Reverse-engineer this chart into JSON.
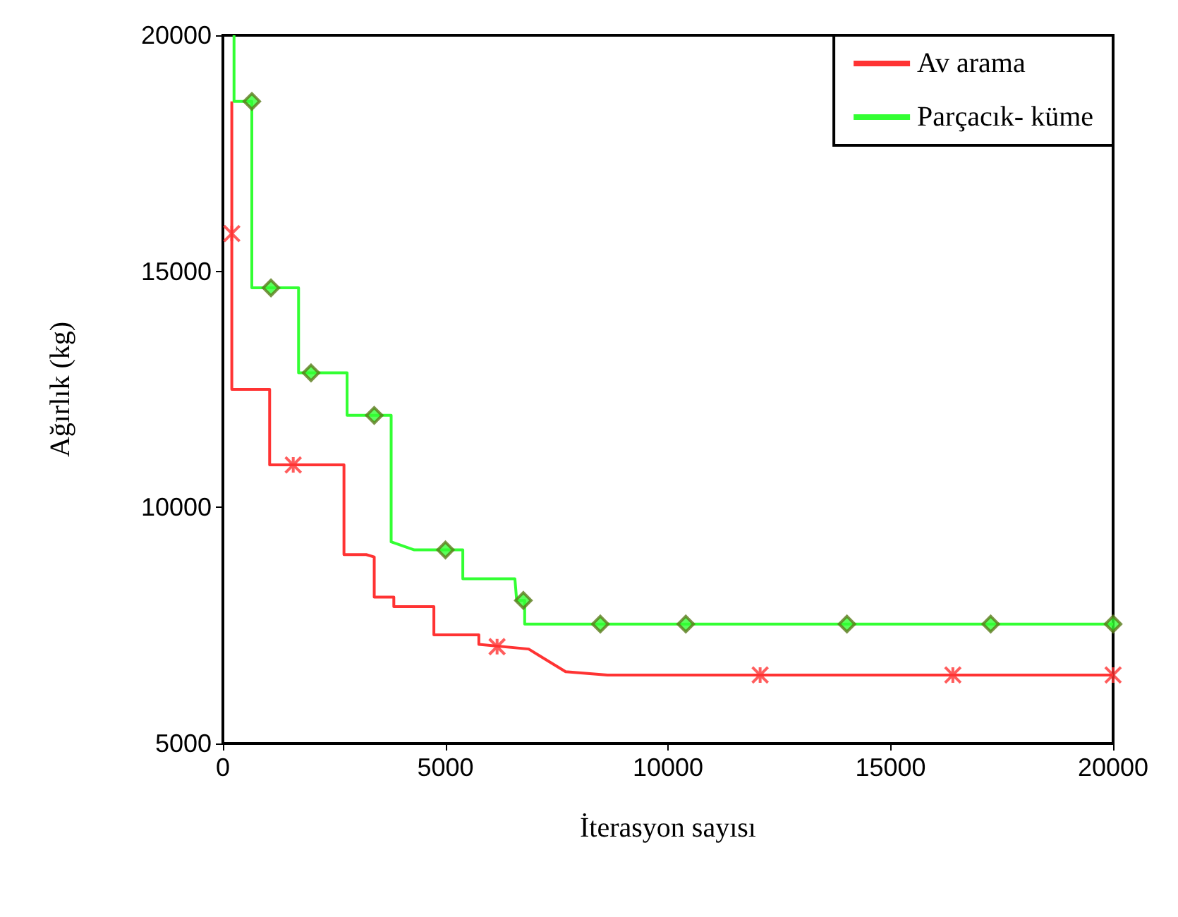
{
  "chart_data": {
    "type": "line",
    "xlabel": "İterasyon sayısı",
    "ylabel": "Ağırlık (kg)",
    "xlim": [
      0,
      20000
    ],
    "xticks": [
      0,
      5000,
      10000,
      15000,
      20000
    ],
    "ylim": [
      5000,
      20000
    ],
    "yticks": [
      5000,
      10000,
      15000,
      20000
    ],
    "grid": false,
    "legend": "top right",
    "series": [
      {
        "name": "Av arama",
        "color": "#ff3333",
        "marker": "none",
        "x": [
          200,
          200,
          1050,
          1050,
          2720,
          2720,
          3220,
          3400,
          3400,
          3840,
          3840,
          4740,
          4740,
          5750,
          5750,
          6870,
          7700,
          8640,
          20000
        ],
        "values": [
          18600,
          12500,
          12500,
          10900,
          10900,
          9000,
          9000,
          8950,
          8100,
          8100,
          7900,
          7900,
          7300,
          7300,
          7100,
          7000,
          6520,
          6450,
          6450
        ]
      },
      {
        "name": "Parçacık- küme",
        "color": "#33ff33",
        "marker": "none",
        "x": [
          250,
          250,
          650,
          650,
          1700,
          1700,
          2790,
          2790,
          3780,
          3780,
          4300,
          5390,
          5390,
          6560,
          6600,
          6780,
          6780,
          20000
        ],
        "values": [
          20000,
          18600,
          18600,
          14650,
          14650,
          12850,
          12850,
          11950,
          11950,
          9270,
          9100,
          9100,
          8490,
          8490,
          8030,
          8030,
          7530,
          7530
        ]
      },
      {
        "type": "scatter",
        "color": "#ff3333",
        "marker": "cross",
        "x": [
          200,
          1580,
          6160,
          12070,
          16400,
          20000
        ],
        "values": [
          15800,
          10900,
          7050,
          6450,
          6450,
          6450
        ]
      },
      {
        "type": "scatter",
        "color": "#33ff33",
        "marker": "diamond",
        "x": [
          650,
          1080,
          1980,
          3400,
          5000,
          6750,
          8480,
          10400,
          14020,
          17250,
          20000
        ],
        "values": [
          18600,
          14650,
          12850,
          11950,
          9100,
          8030,
          7530,
          7530,
          7530,
          7530,
          7530
        ]
      }
    ]
  }
}
